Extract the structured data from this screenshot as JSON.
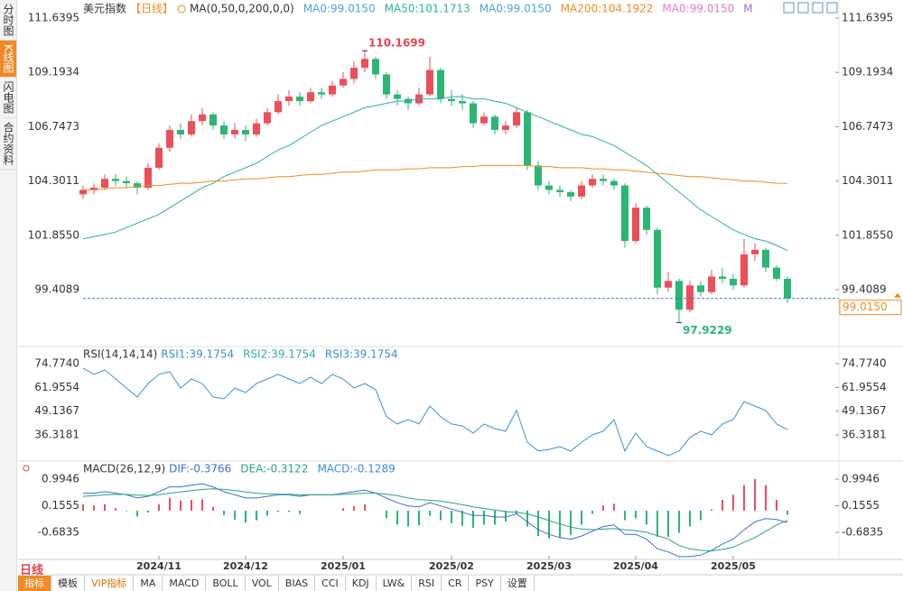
{
  "sidebar": {
    "items": [
      "分时图",
      "K线图",
      "闪电图",
      "合约资料"
    ],
    "active": 1
  },
  "toolbar": {
    "period": "日线",
    "buttons": [
      "指标",
      "模板",
      "VIP指标",
      "MA",
      "MACD",
      "BOLL",
      "VOL",
      "BIAS",
      "CCI",
      "KDJ",
      "LW&",
      "RSI",
      "CR",
      "PSY",
      "设置"
    ],
    "active": 0
  },
  "chart_data": [
    {
      "type": "candlestick",
      "title": "美元指数",
      "subtitle": "【日线】",
      "legend": [
        {
          "text": "MA(0,50,0,200,0,0)",
          "color": "#333333"
        },
        {
          "text": "MA0:99.0150",
          "color": "#4aa3df"
        },
        {
          "text": "MA50:101.1713",
          "color": "#2ab3a0"
        },
        {
          "text": "MA0:99.0150",
          "color": "#4aa3df"
        },
        {
          "text": "MA200:104.1922",
          "color": "#f08a24"
        },
        {
          "text": "MA0:99.0150",
          "color": "#e879c9"
        },
        {
          "text": "M",
          "color": "#9b6fd8"
        }
      ],
      "categories": [
        null,
        null,
        null,
        null,
        null,
        null,
        null,
        "2024/11",
        null,
        null,
        null,
        null,
        null,
        null,
        null,
        "2024/12",
        null,
        null,
        null,
        null,
        null,
        null,
        null,
        null,
        "2025/01",
        null,
        null,
        null,
        null,
        null,
        null,
        null,
        null,
        null,
        "2025/02",
        null,
        null,
        null,
        null,
        null,
        null,
        null,
        null,
        "2025/03",
        null,
        null,
        null,
        null,
        null,
        null,
        null,
        "2025/04",
        null,
        null,
        null,
        null,
        null,
        null,
        null,
        null,
        "2025/05",
        null,
        null,
        null,
        null,
        null
      ],
      "up_color": "#ee4d5a",
      "down_color": "#2bb673",
      "candles": [
        [
          103.7,
          104.1,
          103.5,
          103.9
        ],
        [
          103.9,
          104.2,
          103.7,
          104.0
        ],
        [
          104.0,
          104.6,
          103.9,
          104.4
        ],
        [
          104.4,
          104.6,
          104.1,
          104.3
        ],
        [
          104.3,
          104.5,
          104.0,
          104.2
        ],
        [
          104.2,
          104.3,
          103.7,
          104.0
        ],
        [
          104.0,
          105.1,
          103.9,
          104.9
        ],
        [
          104.9,
          106.0,
          104.8,
          105.8
        ],
        [
          105.8,
          106.8,
          105.6,
          106.6
        ],
        [
          106.6,
          106.9,
          106.2,
          106.4
        ],
        [
          106.4,
          107.3,
          106.3,
          107.0
        ],
        [
          107.0,
          107.6,
          106.8,
          107.3
        ],
        [
          107.3,
          107.4,
          106.6,
          106.8
        ],
        [
          106.8,
          107.0,
          106.2,
          106.4
        ],
        [
          106.4,
          106.9,
          106.2,
          106.6
        ],
        [
          106.6,
          106.8,
          106.1,
          106.4
        ],
        [
          106.4,
          107.1,
          106.3,
          106.9
        ],
        [
          106.9,
          107.6,
          106.8,
          107.4
        ],
        [
          107.4,
          108.2,
          107.3,
          107.9
        ],
        [
          107.9,
          108.4,
          107.7,
          108.1
        ],
        [
          108.1,
          108.3,
          107.7,
          107.9
        ],
        [
          107.9,
          108.5,
          107.8,
          108.3
        ],
        [
          108.3,
          108.5,
          108.0,
          108.2
        ],
        [
          108.2,
          108.8,
          108.1,
          108.6
        ],
        [
          108.6,
          109.2,
          108.5,
          108.9
        ],
        [
          108.9,
          109.7,
          108.7,
          109.4
        ],
        [
          109.4,
          110.1699,
          109.2,
          109.8
        ],
        [
          109.8,
          109.9,
          108.9,
          109.1
        ],
        [
          109.1,
          109.2,
          108.0,
          108.2
        ],
        [
          108.2,
          108.4,
          107.7,
          108.0
        ],
        [
          108.0,
          108.1,
          107.5,
          107.8
        ],
        [
          107.8,
          108.5,
          107.7,
          108.2
        ],
        [
          108.2,
          109.9,
          108.1,
          109.3
        ],
        [
          109.3,
          109.4,
          107.8,
          108.0
        ],
        [
          108.0,
          108.4,
          107.7,
          107.9
        ],
        [
          107.9,
          108.2,
          107.5,
          107.8
        ],
        [
          107.8,
          107.9,
          106.7,
          106.9
        ],
        [
          106.9,
          107.4,
          106.8,
          107.2
        ],
        [
          107.2,
          107.3,
          106.4,
          106.6
        ],
        [
          106.6,
          107.0,
          106.4,
          106.8
        ],
        [
          106.8,
          107.6,
          106.7,
          107.4
        ],
        [
          107.4,
          107.5,
          104.8,
          105.0
        ],
        [
          105.0,
          105.2,
          103.9,
          104.1
        ],
        [
          104.1,
          104.3,
          103.7,
          103.9
        ],
        [
          103.9,
          104.1,
          103.6,
          103.8
        ],
        [
          103.8,
          103.9,
          103.4,
          103.6
        ],
        [
          103.6,
          104.3,
          103.5,
          104.1
        ],
        [
          104.1,
          104.6,
          104.0,
          104.4
        ],
        [
          104.4,
          104.6,
          104.1,
          104.3
        ],
        [
          104.3,
          104.4,
          103.9,
          104.1
        ],
        [
          104.1,
          104.2,
          101.3,
          101.6
        ],
        [
          101.6,
          103.3,
          101.5,
          103.1
        ],
        [
          103.1,
          103.2,
          101.9,
          102.1
        ],
        [
          102.1,
          102.2,
          99.2,
          99.5
        ],
        [
          99.5,
          100.2,
          99.3,
          99.8
        ],
        [
          99.8,
          99.9,
          97.9229,
          98.5
        ],
        [
          98.5,
          99.8,
          98.4,
          99.6
        ],
        [
          99.6,
          99.8,
          99.1,
          99.3
        ],
        [
          99.3,
          100.3,
          99.2,
          100.0
        ],
        [
          100.0,
          100.4,
          99.7,
          99.9
        ],
        [
          99.9,
          100.1,
          99.4,
          99.6
        ],
        [
          99.6,
          101.7,
          99.5,
          101.0
        ],
        [
          101.0,
          101.5,
          100.7,
          101.2
        ],
        [
          101.2,
          101.3,
          100.2,
          100.4
        ],
        [
          100.4,
          100.5,
          99.8,
          99.9
        ],
        [
          99.9,
          100.0,
          98.8,
          99.015
        ]
      ],
      "series": [
        {
          "color": "#2ab3a0",
          "values": [
            101.7,
            101.8,
            101.9,
            102.0,
            102.2,
            102.4,
            102.6,
            102.8,
            103.1,
            103.4,
            103.7,
            104.0,
            104.2,
            104.5,
            104.7,
            104.9,
            105.1,
            105.4,
            105.7,
            105.9,
            106.2,
            106.5,
            106.8,
            107.0,
            107.2,
            107.4,
            107.6,
            107.7,
            107.8,
            107.9,
            107.9,
            108.0,
            108.0,
            108.0,
            108.1,
            108.1,
            108.0,
            108.0,
            107.9,
            107.8,
            107.6,
            107.4,
            107.2,
            107.0,
            106.8,
            106.6,
            106.4,
            106.3,
            106.1,
            105.9,
            105.6,
            105.3,
            105.0,
            104.6,
            104.2,
            103.8,
            103.4,
            103.0,
            102.7,
            102.4,
            102.1,
            101.9,
            101.7,
            101.6,
            101.4,
            101.1713
          ]
        },
        {
          "color": "#f08a24",
          "values": [
            103.9,
            103.9,
            103.95,
            104.0,
            104.0,
            104.05,
            104.1,
            104.1,
            104.15,
            104.2,
            104.2,
            104.25,
            104.3,
            104.3,
            104.35,
            104.4,
            104.4,
            104.45,
            104.5,
            104.5,
            104.55,
            104.6,
            104.6,
            104.65,
            104.7,
            104.7,
            104.75,
            104.8,
            104.8,
            104.8,
            104.85,
            104.85,
            104.9,
            104.9,
            104.9,
            104.95,
            104.95,
            105.0,
            105.0,
            105.0,
            105.0,
            105.0,
            104.95,
            104.95,
            104.9,
            104.9,
            104.9,
            104.85,
            104.85,
            104.8,
            104.8,
            104.75,
            104.7,
            104.65,
            104.6,
            104.55,
            104.5,
            104.5,
            104.45,
            104.4,
            104.35,
            104.3,
            104.3,
            104.25,
            104.2,
            104.1922
          ]
        }
      ],
      "last_price": {
        "value": 99.015,
        "label": "99.0150"
      },
      "ylim": [
        96.89,
        112.25
      ],
      "yticks": [
        111.6395,
        109.1934,
        106.7473,
        104.3011,
        {
          "value": 101.855,
          "label": "101.8550"
        },
        99.4089
      ]
    },
    {
      "type": "line",
      "title": "RSI(14,14,14)",
      "legend": [
        {
          "text": "RSI1:39.1754",
          "color": "#3a8fd8"
        },
        {
          "text": "RSI2:39.1754",
          "color": "#2ab3a0"
        },
        {
          "text": "RSI3:39.1754",
          "color": "#3a8fd8"
        }
      ],
      "series": [
        {
          "color": "#3a8fd8",
          "values": [
            72.3,
            69,
            71.4,
            66.5,
            61.6,
            56.8,
            64,
            69,
            70.4,
            61.6,
            66.5,
            64,
            56.8,
            55.8,
            61.6,
            59.2,
            64,
            66.5,
            69,
            66.5,
            64,
            67.5,
            64,
            69,
            66.5,
            61.6,
            64,
            60.7,
            46.1,
            42.2,
            44.6,
            42.2,
            51.9,
            46.1,
            42.2,
            41.2,
            37.3,
            42.2,
            39.7,
            38.3,
            49.5,
            32.4,
            27.6,
            28.5,
            30,
            27.6,
            32.4,
            36.3,
            38.3,
            44.6,
            27.6,
            37.3,
            30,
            27.6,
            25.1,
            27.6,
            34.9,
            38.3,
            36.3,
            42.2,
            44.6,
            54.3,
            51.9,
            49.5,
            42.2,
            39.1754
          ]
        }
      ],
      "ylim": [
        22.69,
        83.54
      ],
      "yticks": [
        {
          "value": 74.774,
          "label": "74.7740"
        },
        61.9554,
        49.1367,
        36.3181
      ]
    },
    {
      "type": "macd",
      "title": "MACD(26,12,9)",
      "legend": [
        {
          "text": "DIF:-0.3766",
          "color": "#3a6fd8"
        },
        {
          "text": "DEA:-0.3122",
          "color": "#2aa37a"
        },
        {
          "text": "MACD:-0.1289",
          "color": "#3a8fd8"
        }
      ],
      "series": [
        {
          "color": "#3a6fd8",
          "values": [
            0.55,
            0.55,
            0.6,
            0.55,
            0.5,
            0.4,
            0.45,
            0.6,
            0.75,
            0.75,
            0.8,
            0.85,
            0.75,
            0.6,
            0.5,
            0.4,
            0.4,
            0.45,
            0.5,
            0.5,
            0.45,
            0.5,
            0.5,
            0.5,
            0.55,
            0.6,
            0.65,
            0.55,
            0.4,
            0.25,
            0.15,
            0.12,
            0.25,
            0.15,
            0.05,
            -0.05,
            -0.15,
            -0.15,
            -0.2,
            -0.2,
            -0.1,
            -0.35,
            -0.6,
            -0.75,
            -0.85,
            -0.9,
            -0.8,
            -0.65,
            -0.5,
            -0.45,
            -0.75,
            -0.75,
            -0.9,
            -1.2,
            -1.3,
            -1.45,
            -1.45,
            -1.4,
            -1.25,
            -1.05,
            -0.9,
            -0.6,
            -0.35,
            -0.25,
            -0.28,
            -0.3766
          ]
        },
        {
          "color": "#2aa37a",
          "values": [
            0.45,
            0.47,
            0.5,
            0.51,
            0.51,
            0.49,
            0.48,
            0.5,
            0.55,
            0.59,
            0.63,
            0.67,
            0.69,
            0.67,
            0.64,
            0.59,
            0.55,
            0.53,
            0.52,
            0.52,
            0.5,
            0.5,
            0.5,
            0.5,
            0.51,
            0.53,
            0.55,
            0.55,
            0.52,
            0.47,
            0.4,
            0.35,
            0.33,
            0.3,
            0.25,
            0.19,
            0.12,
            0.07,
            0.02,
            -0.03,
            -0.05,
            -0.1,
            -0.2,
            -0.31,
            -0.42,
            -0.52,
            -0.58,
            -0.6,
            -0.58,
            -0.56,
            -0.6,
            -0.63,
            -0.68,
            -0.79,
            -0.89,
            -1.1,
            -1.2,
            -1.25,
            -1.27,
            -1.22,
            -1.15,
            -1.0,
            -0.85,
            -0.65,
            -0.45,
            -0.3122
          ]
        }
      ],
      "histogram": {
        "up_color": "#ee4d5a",
        "down_color": "#2bb673",
        "values": [
          0.2,
          0.16,
          0.2,
          0.08,
          -0.02,
          -0.18,
          -0.06,
          0.2,
          0.4,
          0.32,
          0.34,
          0.36,
          0.12,
          -0.14,
          -0.28,
          -0.38,
          -0.3,
          -0.16,
          -0.04,
          -0.04,
          -0.1,
          0,
          0,
          0,
          0.08,
          0.14,
          0.2,
          0,
          -0.24,
          -0.44,
          -0.5,
          -0.46,
          -0.16,
          -0.3,
          -0.4,
          -0.48,
          -0.54,
          -0.44,
          -0.44,
          -0.34,
          -0.1,
          -0.5,
          -0.8,
          -0.88,
          -0.86,
          -0.76,
          -0.44,
          -0.1,
          0.16,
          0.22,
          -0.3,
          -0.24,
          -0.44,
          -0.82,
          -0.82,
          -0.7,
          -0.5,
          -0.3,
          0.04,
          0.34,
          0.5,
          0.8,
          1.0,
          0.8,
          0.34,
          -0.1289
        ]
      },
      "ylim": [
        -1.537,
        1.535
      ],
      "yticks": [
        0.9946,
        0.1555,
        {
          "value": -0.6835,
          "label": "-0.6835"
        }
      ]
    }
  ]
}
